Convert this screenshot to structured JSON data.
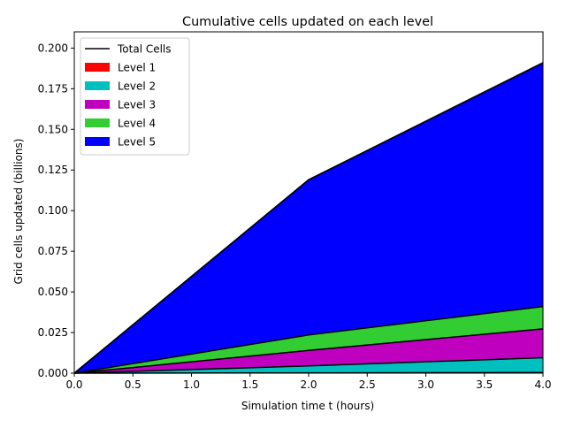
{
  "chart_data": {
    "type": "area",
    "stacked": true,
    "title": "Cumulative cells updated on each level",
    "xlabel": "Simulation time t (hours)",
    "ylabel": "Grid cells updated (billions)",
    "x": [
      0.0,
      2.0,
      4.0
    ],
    "xlim": [
      0.0,
      4.0
    ],
    "ylim": [
      0.0,
      0.21
    ],
    "xticks": [
      "0.0",
      "0.5",
      "1.0",
      "1.5",
      "2.0",
      "2.5",
      "3.0",
      "3.5",
      "4.0"
    ],
    "xtick_values": [
      0.0,
      0.5,
      1.0,
      1.5,
      2.0,
      2.5,
      3.0,
      3.5,
      4.0
    ],
    "yticks": [
      "0.000",
      "0.025",
      "0.050",
      "0.075",
      "0.100",
      "0.125",
      "0.150",
      "0.175",
      "0.200"
    ],
    "ytick_values": [
      0.0,
      0.025,
      0.05,
      0.075,
      0.1,
      0.125,
      0.15,
      0.175,
      0.2
    ],
    "grid": false,
    "legend_position": "top-left",
    "total_line": {
      "name": "Total Cells",
      "color": "#000000",
      "values": [
        0.0,
        0.119,
        0.191
      ]
    },
    "series": [
      {
        "name": "Level 1",
        "color": "#ff0000",
        "values": [
          0.0,
          0.0002,
          0.0004
        ]
      },
      {
        "name": "Level 2",
        "color": "#00bfbf",
        "values": [
          0.0,
          0.0043,
          0.0091
        ]
      },
      {
        "name": "Level 3",
        "color": "#bf00bf",
        "values": [
          0.0,
          0.0095,
          0.0178
        ]
      },
      {
        "name": "Level 4",
        "color": "#32cd32",
        "values": [
          0.0,
          0.0095,
          0.0137
        ]
      },
      {
        "name": "Level 5",
        "color": "#0000ff",
        "values": [
          0.0,
          0.0955,
          0.15
        ]
      }
    ]
  }
}
